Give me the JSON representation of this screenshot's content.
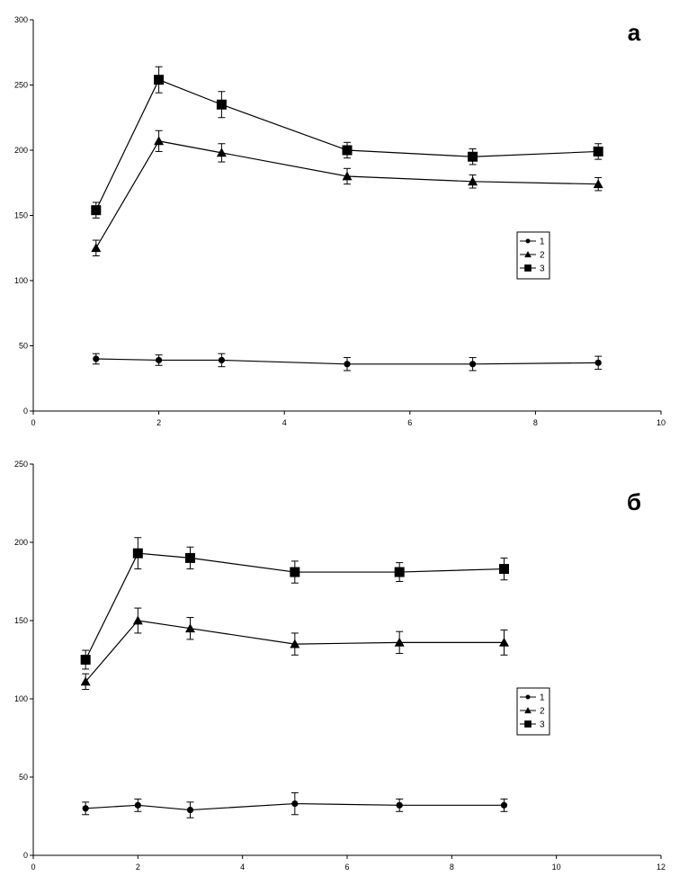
{
  "chart_data": [
    {
      "type": "line",
      "panel_label": "а",
      "xlim": [
        0,
        10
      ],
      "ylim": [
        0,
        300
      ],
      "xticks": [
        0,
        2,
        4,
        6,
        8,
        10
      ],
      "yticks": [
        0,
        50,
        100,
        150,
        200,
        250,
        300
      ],
      "grid": false,
      "legend": {
        "position": "right-middle",
        "entries": [
          "1",
          "2",
          "3"
        ]
      },
      "series": [
        {
          "name": "1",
          "marker": "circle",
          "x": [
            1,
            2,
            3,
            5,
            7,
            9
          ],
          "y": [
            40,
            39,
            39,
            36,
            36,
            37
          ],
          "err": [
            4,
            4,
            5,
            5,
            5,
            5
          ]
        },
        {
          "name": "2",
          "marker": "triangle",
          "x": [
            1,
            2,
            3,
            5,
            7,
            9
          ],
          "y": [
            125,
            207,
            198,
            180,
            176,
            174
          ],
          "err": [
            6,
            8,
            7,
            6,
            5,
            5
          ]
        },
        {
          "name": "3",
          "marker": "square",
          "x": [
            1,
            2,
            3,
            5,
            7,
            9
          ],
          "y": [
            154,
            254,
            235,
            200,
            195,
            199
          ],
          "err": [
            6,
            10,
            10,
            6,
            6,
            6
          ]
        }
      ]
    },
    {
      "type": "line",
      "panel_label": "б",
      "xlim": [
        0,
        12
      ],
      "ylim": [
        0,
        250
      ],
      "xticks": [
        0,
        2,
        4,
        6,
        8,
        10,
        12
      ],
      "yticks": [
        0,
        50,
        100,
        150,
        200,
        250
      ],
      "grid": false,
      "legend": {
        "position": "right-middle",
        "entries": [
          "1",
          "2",
          "3"
        ]
      },
      "series": [
        {
          "name": "1",
          "marker": "circle",
          "x": [
            1,
            2,
            3,
            5,
            7,
            9
          ],
          "y": [
            30,
            32,
            29,
            33,
            32,
            32
          ],
          "err": [
            4,
            4,
            5,
            7,
            4,
            4
          ]
        },
        {
          "name": "2",
          "marker": "triangle",
          "x": [
            1,
            2,
            3,
            5,
            7,
            9
          ],
          "y": [
            111,
            150,
            145,
            135,
            136,
            136
          ],
          "err": [
            5,
            8,
            7,
            7,
            7,
            8
          ]
        },
        {
          "name": "3",
          "marker": "square",
          "x": [
            1,
            2,
            3,
            5,
            7,
            9
          ],
          "y": [
            125,
            193,
            190,
            181,
            181,
            183
          ],
          "err": [
            6,
            10,
            7,
            7,
            6,
            7
          ]
        }
      ]
    }
  ]
}
